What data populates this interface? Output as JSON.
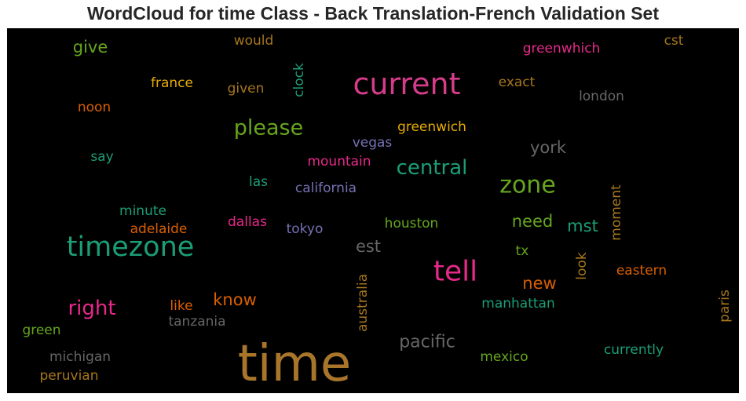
{
  "chart_data": {
    "type": "wordcloud",
    "title": "WordCloud for time Class - Back Translation-French Validation Set",
    "background": "#000000",
    "words": [
      {
        "text": "time",
        "color": "#a8752a"
      },
      {
        "text": "current",
        "color": "#d63c8a"
      },
      {
        "text": "timezone",
        "color": "#1b9e77"
      },
      {
        "text": "tell",
        "color": "#e7298a"
      },
      {
        "text": "please",
        "color": "#66a61e"
      },
      {
        "text": "zone",
        "color": "#66a61e"
      },
      {
        "text": "central",
        "color": "#1b9e77"
      },
      {
        "text": "right",
        "color": "#e7298a"
      },
      {
        "text": "pacific",
        "color": "#666666"
      },
      {
        "text": "york",
        "color": "#666666"
      },
      {
        "text": "know",
        "color": "#d95f02"
      },
      {
        "text": "need",
        "color": "#66a61e"
      },
      {
        "text": "give",
        "color": "#66a61e"
      },
      {
        "text": "est",
        "color": "#666666"
      },
      {
        "text": "mst",
        "color": "#1b9e77"
      },
      {
        "text": "new",
        "color": "#d95f02"
      },
      {
        "text": "greenwhich",
        "color": "#e7298a"
      },
      {
        "text": "greenwich",
        "color": "#e6ab02"
      },
      {
        "text": "france",
        "color": "#e6ab02"
      },
      {
        "text": "given",
        "color": "#a6761d"
      },
      {
        "text": "clock",
        "color": "#1b9e77"
      },
      {
        "text": "would",
        "color": "#a6761d"
      },
      {
        "text": "cst",
        "color": "#a6761d"
      },
      {
        "text": "exact",
        "color": "#a6761d"
      },
      {
        "text": "london",
        "color": "#666666"
      },
      {
        "text": "noon",
        "color": "#d95f02"
      },
      {
        "text": "vegas",
        "color": "#7570b3"
      },
      {
        "text": "say",
        "color": "#1b9e77"
      },
      {
        "text": "mountain",
        "color": "#e7298a"
      },
      {
        "text": "las",
        "color": "#1b9e77"
      },
      {
        "text": "california",
        "color": "#7570b3"
      },
      {
        "text": "minute",
        "color": "#1b9e77"
      },
      {
        "text": "moment",
        "color": "#a6761d"
      },
      {
        "text": "adelaide",
        "color": "#d95f02"
      },
      {
        "text": "dallas",
        "color": "#e7298a"
      },
      {
        "text": "tokyo",
        "color": "#7570b3"
      },
      {
        "text": "houston",
        "color": "#66a61e"
      },
      {
        "text": "tx",
        "color": "#66a61e"
      },
      {
        "text": "look",
        "color": "#a6761d"
      },
      {
        "text": "eastern",
        "color": "#d95f02"
      },
      {
        "text": "australia",
        "color": "#a6761d"
      },
      {
        "text": "like",
        "color": "#d95f02"
      },
      {
        "text": "manhattan",
        "color": "#1b9e77"
      },
      {
        "text": "tanzania",
        "color": "#666666"
      },
      {
        "text": "paris",
        "color": "#a6761d"
      },
      {
        "text": "green",
        "color": "#66a61e"
      },
      {
        "text": "michigan",
        "color": "#666666"
      },
      {
        "text": "currently",
        "color": "#1b9e77"
      },
      {
        "text": "mexico",
        "color": "#66a61e"
      },
      {
        "text": "peruvian",
        "color": "#a6761d"
      }
    ]
  }
}
